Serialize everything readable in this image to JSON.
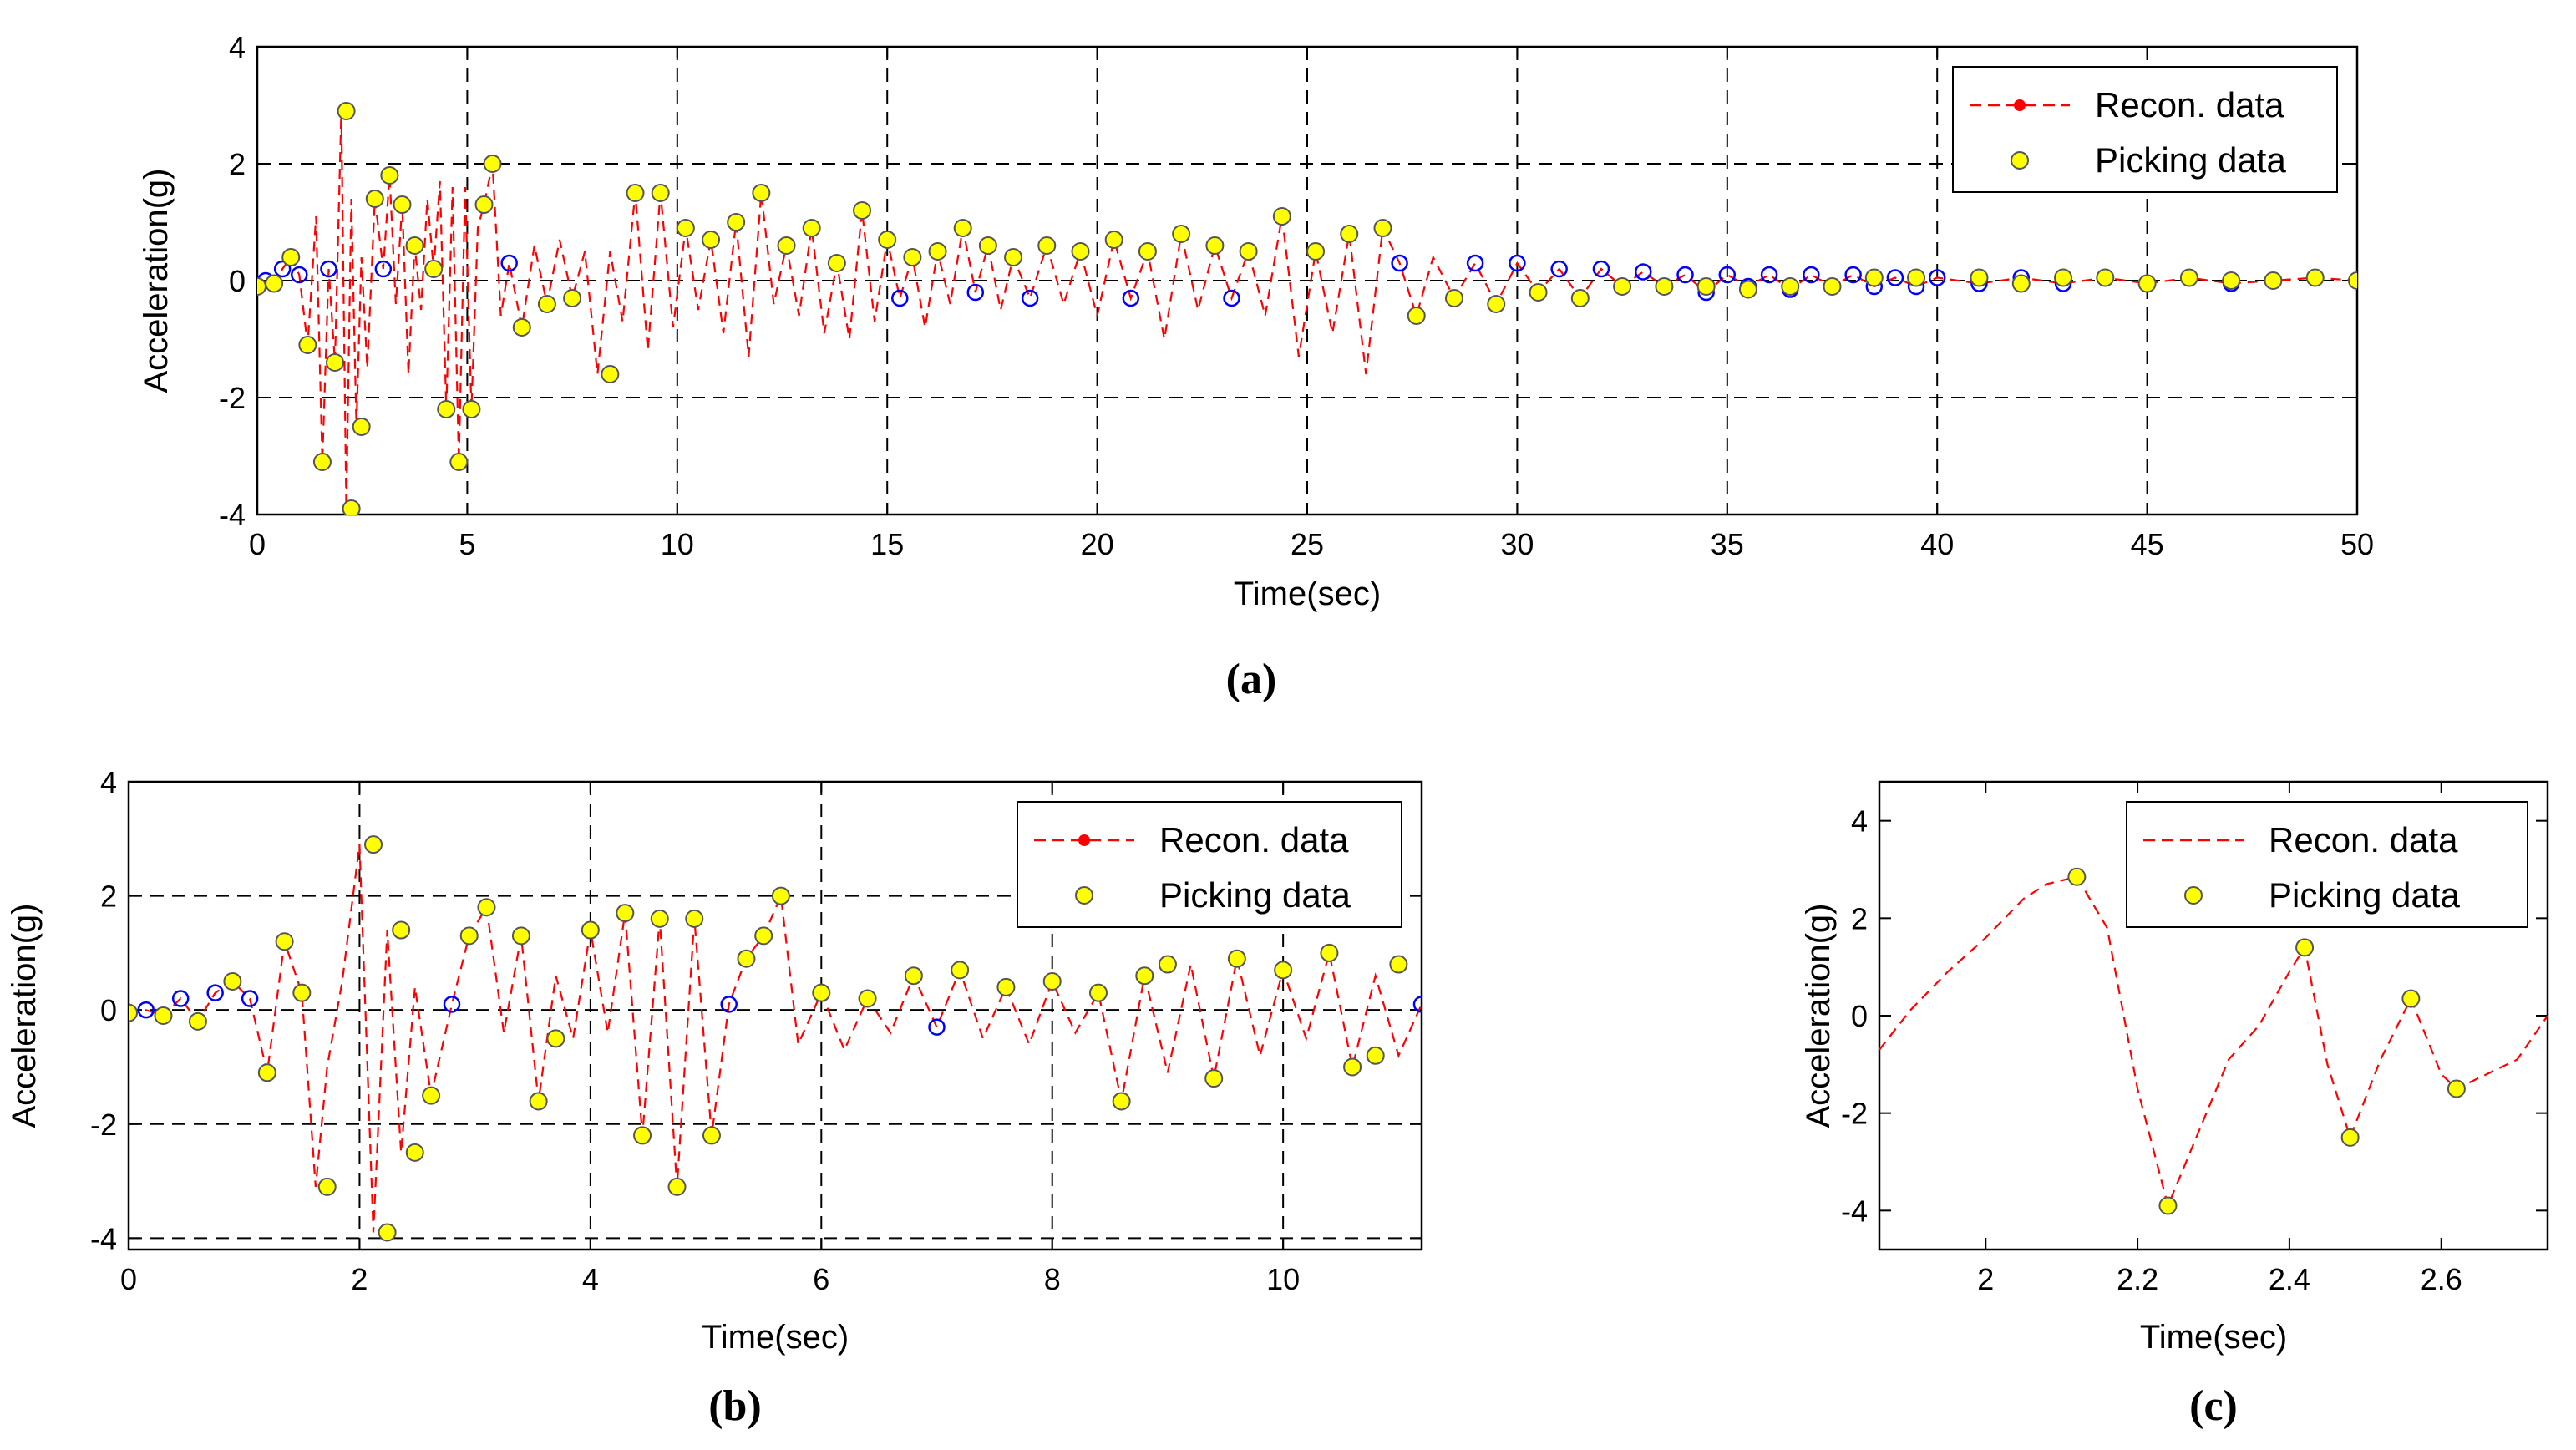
{
  "colors": {
    "recon_line": "#ff0000",
    "marker_fill": "#ffff00",
    "marker_edge": "#555555",
    "blue_marker": "#0000ff",
    "grid": "#000000",
    "axes": "#000000"
  },
  "chart_data": [
    {
      "id": "a",
      "type": "line",
      "caption": "(a)",
      "xlabel": "Time(sec)",
      "ylabel": "Acceleration(g)",
      "xlim": [
        0,
        50
      ],
      "ylim": [
        -4,
        4
      ],
      "xticks": [
        0,
        5,
        10,
        15,
        20,
        25,
        30,
        35,
        40,
        45,
        50
      ],
      "yticks": [
        -4,
        -2,
        0,
        2,
        4
      ],
      "grid": true,
      "legend": {
        "position": "top-right",
        "entries": [
          "Recon. data",
          "Picking data"
        ]
      },
      "series": [
        {
          "name": "Recon. data",
          "style": "dashed-line",
          "x": [
            0.0,
            0.2,
            0.4,
            0.6,
            0.8,
            1.0,
            1.2,
            1.4,
            1.55,
            1.7,
            1.85,
            2.0,
            2.12,
            2.24,
            2.36,
            2.48,
            2.62,
            2.8,
            3.0,
            3.15,
            3.3,
            3.45,
            3.6,
            3.75,
            3.9,
            4.05,
            4.2,
            4.35,
            4.5,
            4.65,
            4.8,
            4.95,
            5.1,
            5.25,
            5.4,
            5.6,
            5.8,
            6.0,
            6.3,
            6.6,
            6.9,
            7.2,
            7.5,
            7.8,
            8.1,
            8.4,
            8.7,
            9.0,
            9.3,
            9.6,
            9.9,
            10.2,
            10.5,
            10.8,
            11.1,
            11.4,
            11.7,
            12.0,
            12.3,
            12.6,
            12.9,
            13.2,
            13.5,
            13.8,
            14.1,
            14.4,
            14.7,
            15.0,
            15.3,
            15.6,
            15.9,
            16.2,
            16.5,
            16.8,
            17.1,
            17.4,
            17.7,
            18.0,
            18.4,
            18.8,
            19.2,
            19.6,
            20.0,
            20.4,
            20.8,
            21.2,
            21.6,
            22.0,
            22.4,
            22.8,
            23.2,
            23.6,
            24.0,
            24.4,
            24.8,
            25.2,
            25.6,
            26.0,
            26.4,
            26.8,
            27.2,
            27.6,
            28.0,
            28.5,
            29.0,
            29.5,
            30.0,
            30.5,
            31.0,
            31.5,
            32.0,
            32.5,
            33.0,
            33.5,
            34.0,
            34.5,
            35.0,
            35.5,
            36.0,
            36.5,
            37.0,
            37.5,
            38.0,
            38.5,
            39.0,
            39.5,
            40.0,
            41.0,
            42.0,
            43.0,
            44.0,
            45.0,
            46.0,
            47.0,
            48.0,
            49.0,
            50.0
          ],
          "y": [
            -0.1,
            0.0,
            -0.05,
            0.2,
            0.4,
            0.1,
            -1.1,
            1.1,
            -3.1,
            0.2,
            -1.4,
            2.9,
            -3.9,
            1.4,
            -2.5,
            0.4,
            -1.5,
            1.4,
            0.2,
            1.8,
            -0.4,
            1.3,
            -1.6,
            0.6,
            -0.5,
            1.4,
            0.2,
            1.7,
            -2.2,
            1.6,
            -3.1,
            1.6,
            -2.2,
            0.9,
            1.3,
            2.0,
            -0.6,
            0.3,
            -0.8,
            0.6,
            -0.4,
            0.7,
            -0.3,
            0.5,
            -1.6,
            0.5,
            -0.7,
            1.5,
            -1.2,
            1.5,
            -0.8,
            0.9,
            -0.5,
            0.7,
            -0.9,
            1.0,
            -1.3,
            1.5,
            -0.4,
            0.6,
            -0.6,
            0.9,
            -0.9,
            0.3,
            -1.0,
            1.2,
            -0.7,
            0.7,
            -0.3,
            0.4,
            -0.8,
            0.5,
            -0.4,
            0.9,
            -0.2,
            0.6,
            -0.5,
            0.4,
            -0.3,
            0.6,
            -0.4,
            0.5,
            -0.6,
            0.7,
            -0.3,
            0.5,
            -1.0,
            0.8,
            -0.5,
            0.6,
            -0.3,
            0.5,
            -0.6,
            1.1,
            -1.3,
            0.5,
            -0.9,
            0.8,
            -1.6,
            0.9,
            0.3,
            -0.6,
            0.4,
            -0.3,
            0.3,
            -0.4,
            0.3,
            -0.2,
            0.2,
            -0.3,
            0.2,
            -0.1,
            0.15,
            -0.1,
            0.1,
            -0.2,
            0.1,
            -0.1,
            0.1,
            -0.15,
            0.1,
            -0.1,
            0.1,
            -0.1,
            0.05,
            -0.1,
            0.05,
            -0.05,
            0.05,
            -0.05,
            0.05,
            -0.05,
            0.05,
            -0.05,
            0.0,
            0.05,
            0.0
          ]
        },
        {
          "name": "Picking data",
          "style": "markers",
          "x": [
            0.0,
            0.4,
            0.8,
            1.2,
            1.55,
            1.85,
            2.12,
            2.24,
            2.48,
            2.8,
            3.15,
            3.45,
            3.75,
            4.2,
            4.5,
            4.8,
            5.1,
            5.4,
            5.6,
            6.3,
            6.9,
            7.5,
            8.4,
            9.0,
            9.6,
            10.2,
            10.8,
            11.4,
            12.0,
            12.6,
            13.2,
            13.8,
            14.4,
            15.0,
            15.6,
            16.2,
            16.8,
            17.4,
            18.0,
            18.8,
            19.6,
            20.4,
            21.2,
            22.0,
            22.8,
            23.6,
            24.4,
            25.2,
            26.0,
            26.8,
            27.6,
            28.5,
            29.5,
            30.5,
            31.5,
            32.5,
            33.5,
            34.5,
            35.5,
            36.5,
            37.5,
            38.5,
            39.5,
            41.0,
            42.0,
            43.0,
            44.0,
            45.0,
            46.0,
            47.0,
            48.0,
            49.0,
            50.0
          ],
          "y": [
            -0.1,
            -0.05,
            0.4,
            -1.1,
            -3.1,
            -1.4,
            2.9,
            -3.9,
            -2.5,
            1.4,
            1.8,
            1.3,
            0.6,
            0.2,
            -2.2,
            -3.1,
            -2.2,
            1.3,
            2.0,
            -0.8,
            -0.4,
            -0.3,
            -1.6,
            1.5,
            1.5,
            0.9,
            0.7,
            1.0,
            1.5,
            0.6,
            0.9,
            0.3,
            1.2,
            0.7,
            0.4,
            0.5,
            0.9,
            0.6,
            0.4,
            0.6,
            0.5,
            0.7,
            0.5,
            0.8,
            0.6,
            0.5,
            1.1,
            0.5,
            0.8,
            0.9,
            -0.6,
            -0.3,
            -0.4,
            -0.2,
            -0.3,
            -0.1,
            -0.1,
            -0.1,
            -0.15,
            -0.1,
            -0.1,
            0.05,
            0.05,
            0.05,
            -0.05,
            0.05,
            0.05,
            -0.05,
            0.05,
            0.0,
            0.0,
            0.05,
            0.0
          ]
        }
      ]
    },
    {
      "id": "b",
      "type": "line",
      "caption": "(b)",
      "xlabel": "Time(sec)",
      "ylabel": "Acceleration(g)",
      "xlim": [
        0,
        11.2
      ],
      "ylim": [
        -4.2,
        4
      ],
      "xticks": [
        0,
        2,
        4,
        6,
        8,
        10
      ],
      "yticks": [
        -4,
        -2,
        0,
        2,
        4
      ],
      "grid": true,
      "legend": {
        "position": "top-right",
        "entries": [
          "Recon. data",
          "Picking data"
        ]
      },
      "series": [
        {
          "name": "Recon. data",
          "style": "dashed-line",
          "x": [
            0.0,
            0.15,
            0.3,
            0.45,
            0.6,
            0.75,
            0.9,
            1.05,
            1.2,
            1.35,
            1.5,
            1.62,
            1.72,
            1.85,
            2.0,
            2.12,
            2.24,
            2.36,
            2.48,
            2.62,
            2.8,
            2.95,
            3.1,
            3.25,
            3.4,
            3.55,
            3.7,
            3.85,
            4.0,
            4.15,
            4.3,
            4.45,
            4.6,
            4.75,
            4.9,
            5.05,
            5.2,
            5.35,
            5.5,
            5.65,
            5.8,
            6.0,
            6.2,
            6.4,
            6.6,
            6.8,
            7.0,
            7.2,
            7.4,
            7.6,
            7.8,
            8.0,
            8.2,
            8.4,
            8.6,
            8.8,
            9.0,
            9.2,
            9.4,
            9.6,
            9.8,
            10.0,
            10.2,
            10.4,
            10.6,
            10.8,
            11.0,
            11.2
          ],
          "y": [
            -0.05,
            0.0,
            -0.1,
            0.2,
            -0.2,
            0.3,
            0.5,
            0.2,
            -1.1,
            1.2,
            0.3,
            -3.1,
            -1.0,
            0.5,
            2.9,
            -3.9,
            1.4,
            -2.5,
            0.4,
            -1.5,
            0.1,
            1.3,
            1.8,
            -0.4,
            1.3,
            -1.6,
            0.6,
            -0.5,
            1.4,
            -0.4,
            1.7,
            -2.2,
            1.6,
            -3.1,
            1.6,
            -2.2,
            0.1,
            0.9,
            1.3,
            2.0,
            -0.6,
            0.3,
            -0.7,
            0.2,
            -0.4,
            0.6,
            -0.3,
            0.7,
            -0.5,
            0.4,
            -0.6,
            0.5,
            -0.4,
            0.3,
            -1.6,
            0.6,
            -1.1,
            0.8,
            -1.2,
            0.9,
            -0.8,
            0.7,
            -0.5,
            1.0,
            -1.0,
            0.6,
            -0.8,
            0.1
          ]
        },
        {
          "name": "Picking data",
          "style": "markers",
          "x": [
            0.0,
            0.3,
            0.6,
            0.9,
            1.2,
            1.35,
            1.5,
            1.72,
            2.12,
            2.24,
            2.36,
            2.48,
            2.62,
            2.95,
            3.1,
            3.4,
            3.55,
            3.7,
            4.0,
            4.3,
            4.45,
            4.6,
            4.75,
            4.9,
            5.05,
            5.35,
            5.5,
            5.65,
            6.0,
            6.4,
            6.8,
            7.2,
            7.6,
            8.0,
            8.4,
            8.6,
            8.8,
            9.0,
            9.4,
            9.6,
            10.0,
            10.4,
            10.6,
            10.8,
            11.0
          ],
          "y": [
            -0.05,
            -0.1,
            -0.2,
            0.5,
            -1.1,
            1.2,
            0.3,
            -3.1,
            2.9,
            -3.9,
            1.4,
            -2.5,
            -1.5,
            1.3,
            1.8,
            1.3,
            -1.6,
            -0.5,
            1.4,
            1.7,
            -2.2,
            1.6,
            -3.1,
            1.6,
            -2.2,
            0.9,
            1.3,
            2.0,
            0.3,
            0.2,
            0.6,
            0.7,
            0.4,
            0.5,
            0.3,
            -1.6,
            0.6,
            0.8,
            -1.2,
            0.9,
            0.7,
            1.0,
            -1.0,
            -0.8,
            0.8
          ]
        }
      ]
    },
    {
      "id": "c",
      "type": "line",
      "caption": "(c)",
      "xlabel": "Time(sec)",
      "ylabel": "Acceleration(g)",
      "xlim": [
        1.86,
        2.74
      ],
      "ylim": [
        -4.8,
        4.8
      ],
      "xticks": [
        2,
        2.2,
        2.4,
        2.6
      ],
      "yticks": [
        -4,
        -2,
        0,
        2,
        4
      ],
      "grid": false,
      "legend": {
        "position": "top-right",
        "entries": [
          "Recon. data",
          "Picking data"
        ]
      },
      "series": [
        {
          "name": "Recon. data",
          "style": "dashed-line",
          "x": [
            1.86,
            1.9,
            1.95,
            2.0,
            2.05,
            2.08,
            2.12,
            2.16,
            2.2,
            2.24,
            2.28,
            2.32,
            2.36,
            2.4,
            2.42,
            2.45,
            2.48,
            2.52,
            2.56,
            2.6,
            2.62,
            2.66,
            2.7,
            2.74
          ],
          "y": [
            -0.7,
            0.1,
            0.9,
            1.6,
            2.4,
            2.7,
            2.85,
            1.8,
            -1.5,
            -3.9,
            -2.4,
            -0.9,
            -0.2,
            0.9,
            1.4,
            -1.0,
            -2.5,
            -0.9,
            0.35,
            -1.2,
            -1.5,
            -1.2,
            -0.9,
            0.0
          ]
        },
        {
          "name": "Picking data",
          "style": "markers",
          "x": [
            2.12,
            2.24,
            2.42,
            2.48,
            2.56,
            2.62
          ],
          "y": [
            2.85,
            -3.9,
            1.4,
            -2.5,
            0.35,
            -1.5
          ]
        }
      ]
    }
  ]
}
